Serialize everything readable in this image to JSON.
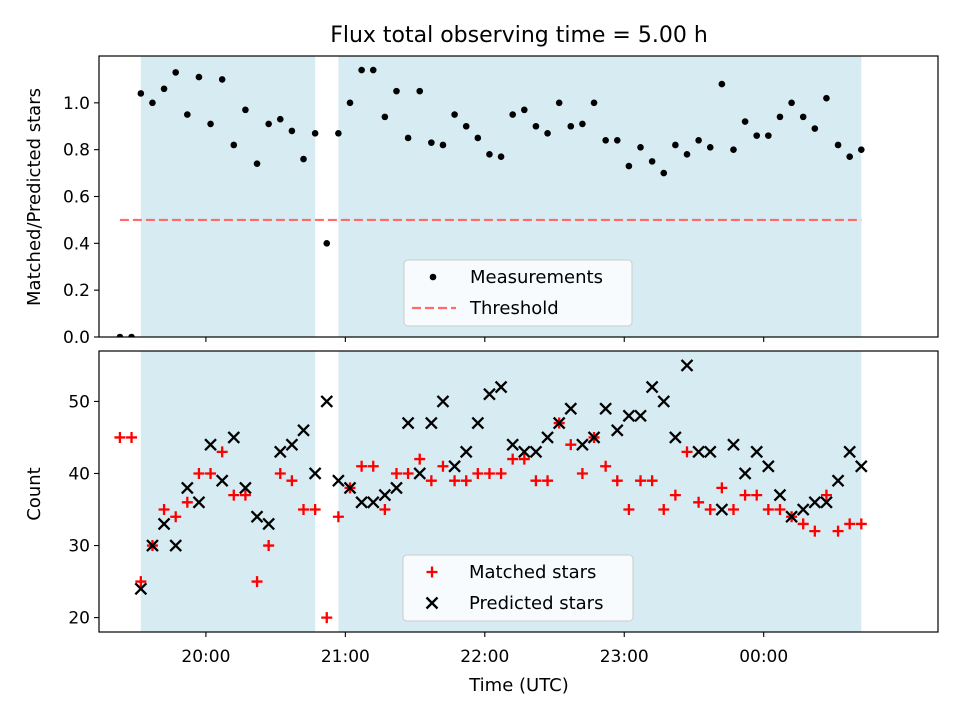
{
  "figure": {
    "title": "Flux total observing time = 5.00 h",
    "xlabel": "Time (UTC)"
  },
  "colors": {
    "band": "#add8e6",
    "measurement": "#000000",
    "threshold": "#ff6b6b",
    "matched": "#ff0000",
    "predicted": "#000000"
  },
  "chart_data": [
    {
      "type": "scatter",
      "panel": "top",
      "title": "Flux total observing time = 5.00 h",
      "xlabel": "",
      "ylabel": "Matched/Predicted stars",
      "ylim": [
        0,
        1.2
      ],
      "yticks": [
        0.0,
        0.2,
        0.4,
        0.6,
        0.8,
        1.0
      ],
      "xlim": [
        "19:14",
        "25:15"
      ],
      "xticks": [
        "20:00",
        "21:00",
        "22:00",
        "23:00",
        "00:00"
      ],
      "grid": false,
      "legend": "lower center",
      "observing_windows": [
        [
          "19:32",
          "20:47"
        ],
        [
          "20:57",
          "24:42"
        ]
      ],
      "threshold": {
        "name": "Threshold",
        "value": 0.5,
        "x": [
          "19:23",
          "24:42"
        ]
      },
      "series": [
        {
          "name": "Measurements",
          "marker": "dot",
          "x": [
            "19:23",
            "19:28",
            "19:32",
            "19:37",
            "19:42",
            "19:47",
            "19:52",
            "19:57",
            "20:02",
            "20:07",
            "20:12",
            "20:17",
            "20:22",
            "20:27",
            "20:32",
            "20:37",
            "20:42",
            "20:47",
            "20:52",
            "20:57",
            "21:02",
            "21:07",
            "21:12",
            "21:17",
            "21:22",
            "21:27",
            "21:32",
            "21:37",
            "21:42",
            "21:47",
            "21:52",
            "21:57",
            "22:02",
            "22:07",
            "22:12",
            "22:17",
            "22:22",
            "22:27",
            "22:32",
            "22:37",
            "22:42",
            "22:47",
            "22:52",
            "22:57",
            "23:02",
            "23:07",
            "23:12",
            "23:17",
            "23:22",
            "23:27",
            "23:32",
            "23:37",
            "23:42",
            "23:47",
            "23:52",
            "23:57",
            "24:02",
            "24:07",
            "24:12",
            "24:17",
            "24:22",
            "24:27",
            "24:32",
            "24:37",
            "24:42"
          ],
          "y": [
            0.0,
            0.0,
            1.04,
            1.0,
            1.06,
            1.13,
            0.95,
            1.11,
            0.91,
            1.1,
            0.82,
            0.97,
            0.74,
            0.91,
            0.93,
            0.88,
            0.76,
            0.87,
            0.4,
            0.87,
            1.0,
            1.14,
            1.14,
            0.94,
            1.05,
            0.85,
            1.05,
            0.83,
            0.82,
            0.95,
            0.9,
            0.85,
            0.78,
            0.77,
            0.95,
            0.97,
            0.9,
            0.87,
            1.0,
            0.9,
            0.91,
            1.0,
            0.84,
            0.84,
            0.73,
            0.81,
            0.75,
            0.7,
            0.82,
            0.78,
            0.84,
            0.81,
            1.08,
            0.8,
            0.92,
            0.86,
            0.86,
            0.94,
            1.0,
            0.94,
            0.89,
            1.02,
            0.82,
            0.77,
            0.8
          ]
        }
      ]
    },
    {
      "type": "scatter",
      "panel": "bottom",
      "title": "",
      "xlabel": "Time (UTC)",
      "ylabel": "Count",
      "ylim": [
        18,
        57
      ],
      "yticks": [
        20,
        30,
        40,
        50
      ],
      "xlim": [
        "19:14",
        "25:15"
      ],
      "xticks": [
        "20:00",
        "21:00",
        "22:00",
        "23:00",
        "00:00"
      ],
      "grid": false,
      "legend": "lower center",
      "observing_windows": [
        [
          "19:32",
          "20:47"
        ],
        [
          "20:57",
          "24:42"
        ]
      ],
      "x": [
        "19:23",
        "19:28",
        "19:32",
        "19:37",
        "19:42",
        "19:47",
        "19:52",
        "19:57",
        "20:02",
        "20:07",
        "20:12",
        "20:17",
        "20:22",
        "20:27",
        "20:32",
        "20:37",
        "20:42",
        "20:47",
        "20:52",
        "20:57",
        "21:02",
        "21:07",
        "21:12",
        "21:17",
        "21:22",
        "21:27",
        "21:32",
        "21:37",
        "21:42",
        "21:47",
        "21:52",
        "21:57",
        "22:02",
        "22:07",
        "22:12",
        "22:17",
        "22:22",
        "22:27",
        "22:32",
        "22:37",
        "22:42",
        "22:47",
        "22:52",
        "22:57",
        "23:02",
        "23:07",
        "23:12",
        "23:17",
        "23:22",
        "23:27",
        "23:32",
        "23:37",
        "23:42",
        "23:47",
        "23:52",
        "23:57",
        "24:02",
        "24:07",
        "24:12",
        "24:17",
        "24:22",
        "24:27",
        "24:32",
        "24:37",
        "24:42"
      ],
      "series": [
        {
          "name": "Matched stars",
          "marker": "plus",
          "y": [
            45,
            45,
            25,
            30,
            35,
            34,
            36,
            40,
            40,
            43,
            37,
            37,
            25,
            30,
            40,
            39,
            35,
            35,
            20,
            34,
            38,
            41,
            41,
            35,
            40,
            40,
            42,
            39,
            41,
            39,
            39,
            40,
            40,
            40,
            42,
            42,
            39,
            39,
            47,
            44,
            40,
            45,
            41,
            39,
            35,
            39,
            39,
            35,
            37,
            43,
            36,
            35,
            38,
            35,
            37,
            37,
            35,
            35,
            34,
            33,
            32,
            37,
            32,
            33,
            33
          ]
        },
        {
          "name": "Predicted stars",
          "marker": "x",
          "y": [
            null,
            null,
            24,
            30,
            33,
            30,
            38,
            36,
            44,
            39,
            45,
            38,
            34,
            33,
            43,
            44,
            46,
            40,
            50,
            39,
            38,
            36,
            36,
            37,
            38,
            47,
            40,
            47,
            50,
            41,
            43,
            47,
            51,
            52,
            44,
            43,
            43,
            45,
            47,
            49,
            44,
            45,
            49,
            46,
            48,
            48,
            52,
            50,
            45,
            55,
            43,
            43,
            35,
            44,
            40,
            43,
            41,
            37,
            34,
            35,
            36,
            36,
            39,
            43,
            41
          ]
        }
      ]
    }
  ]
}
